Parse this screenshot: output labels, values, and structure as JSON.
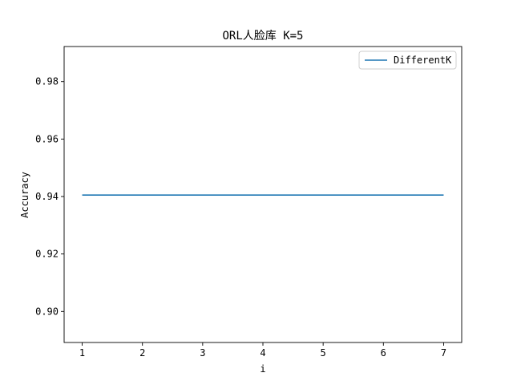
{
  "chart_data": {
    "type": "line",
    "title": "ORL人脸库 K=5",
    "xlabel": "i",
    "ylabel": "Accuracy",
    "xlim": [
      0.7,
      7.3
    ],
    "ylim": [
      0.8892,
      0.9922
    ],
    "xticks": [
      1,
      2,
      3,
      4,
      5,
      6,
      7
    ],
    "yticks": [
      0.9,
      0.92,
      0.94,
      0.96,
      0.98
    ],
    "ytick_labels": [
      "0.90",
      "0.92",
      "0.94",
      "0.96",
      "0.98"
    ],
    "grid": false,
    "legend_position": "top-right",
    "series": [
      {
        "name": "DifferentK",
        "color": "#1f77b4",
        "x": [
          1,
          2,
          3,
          4,
          5,
          6,
          7
        ],
        "y": [
          0.9405,
          0.9405,
          0.9405,
          0.9405,
          0.9405,
          0.9405,
          0.9405
        ]
      }
    ]
  }
}
